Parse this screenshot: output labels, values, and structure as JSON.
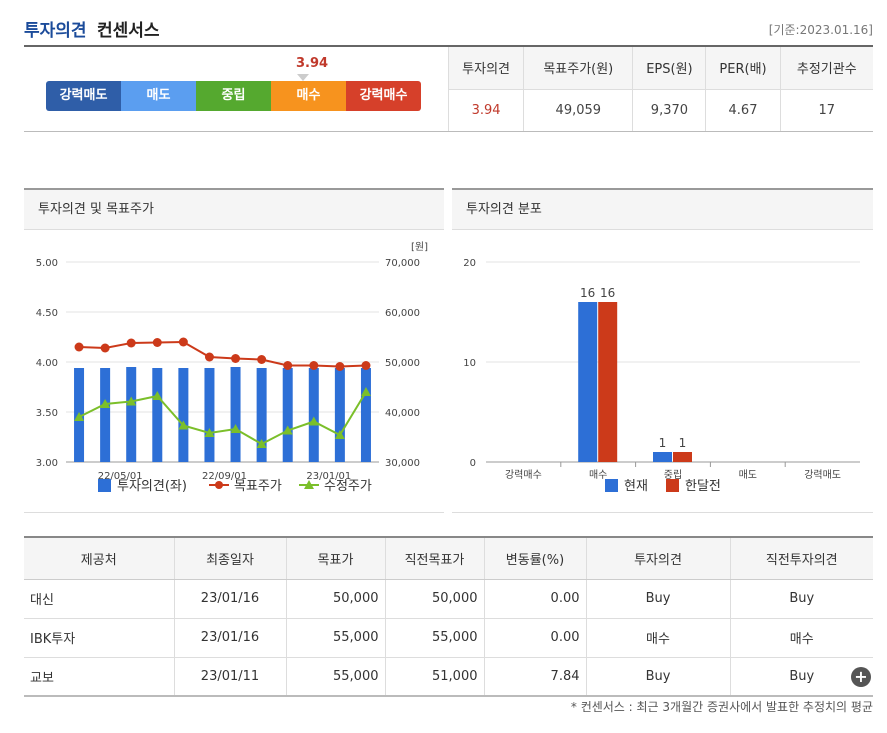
{
  "header": {
    "title_main": "투자의견",
    "title_sub": "컨센서스",
    "base_date": "[기준:2023.01.16]"
  },
  "scale": {
    "segments": [
      {
        "label": "강력매도",
        "color": "#2f5ea8"
      },
      {
        "label": "매도",
        "color": "#5b9ef0"
      },
      {
        "label": "중립",
        "color": "#55a92f"
      },
      {
        "label": "매수",
        "color": "#f7931e"
      },
      {
        "label": "강력매수",
        "color": "#d6402a"
      }
    ],
    "marker_value": "3.94",
    "marker_level": 3.94
  },
  "summary": {
    "headers": [
      "투자의견",
      "목표주가(원)",
      "EPS(원)",
      "PER(배)",
      "추정기관수"
    ],
    "values": [
      "3.94",
      "49,059",
      "9,370",
      "4.67",
      "17"
    ]
  },
  "left_panel": {
    "title": "투자의견 및 목표주가"
  },
  "right_panel": {
    "title": "투자의견 분포"
  },
  "chart_data": [
    {
      "type": "bar+line",
      "title": "투자의견 및 목표주가",
      "y_left_ticks": [
        "5.00",
        "4.50",
        "4.00",
        "3.50",
        "3.00"
      ],
      "y_left_range": [
        3.0,
        5.0
      ],
      "y_right_ticks": [
        "70,000",
        "60,000",
        "50,000",
        "40,000",
        "30,000"
      ],
      "y_right_range": [
        30000,
        70000
      ],
      "y_right_unit": "[원]",
      "x_tick_labels": [
        "22/05/01",
        "22/09/01",
        "23/01/01"
      ],
      "x_tick_indices": [
        2,
        6,
        10
      ],
      "series": [
        {
          "name": "투자의견(좌)",
          "kind": "bar",
          "color": "#2d6fd6",
          "values": [
            3.94,
            3.94,
            3.95,
            3.94,
            3.94,
            3.94,
            3.95,
            3.94,
            3.94,
            3.94,
            3.94,
            3.94
          ]
        },
        {
          "name": "목표주가",
          "kind": "line",
          "color": "#cc3a1a",
          "values": [
            53000,
            52800,
            53800,
            53900,
            54000,
            51000,
            50700,
            50500,
            49300,
            49300,
            49100,
            49300
          ]
        },
        {
          "name": "수정주가",
          "kind": "line",
          "color": "#7bbf2a",
          "values": [
            39000,
            41600,
            42100,
            43200,
            37300,
            35800,
            36600,
            33600,
            36300,
            38100,
            35400,
            44000
          ]
        }
      ],
      "legend": [
        "투자의견(좌)",
        "목표주가",
        "수정주가"
      ]
    },
    {
      "type": "bar",
      "title": "투자의견 분포",
      "categories": [
        "강력매수",
        "매수",
        "중립",
        "매도",
        "강력매도"
      ],
      "y_ticks": [
        "20",
        "10",
        "0"
      ],
      "ylim": [
        0,
        20
      ],
      "series": [
        {
          "name": "현재",
          "color": "#2d6fd6",
          "values": [
            0,
            16,
            1,
            0,
            0
          ]
        },
        {
          "name": "한달전",
          "color": "#cc3a1a",
          "values": [
            0,
            16,
            1,
            0,
            0
          ]
        }
      ],
      "data_labels": [
        "16",
        "16",
        "1",
        "1"
      ]
    }
  ],
  "detail": {
    "headers": [
      "제공처",
      "최종일자",
      "목표가",
      "직전목표가",
      "변동률(%)",
      "투자의견",
      "직전투자의견"
    ],
    "rows": [
      {
        "provider": "대신",
        "date": "23/01/16",
        "target": "50,000",
        "prev_target": "50,000",
        "change": "0.00",
        "opinion": "Buy",
        "prev_opinion": "Buy"
      },
      {
        "provider": "IBK투자",
        "date": "23/01/16",
        "target": "55,000",
        "prev_target": "55,000",
        "change": "0.00",
        "opinion": "매수",
        "prev_opinion": "매수"
      },
      {
        "provider": "교보",
        "date": "23/01/11",
        "target": "55,000",
        "prev_target": "51,000",
        "change": "7.84",
        "opinion": "Buy",
        "prev_opinion": "Buy"
      }
    ],
    "more_icon": "+"
  },
  "footnote": "* 컨센서스 : 최근 3개월간 증권사에서 발표한 추정치의 평균"
}
